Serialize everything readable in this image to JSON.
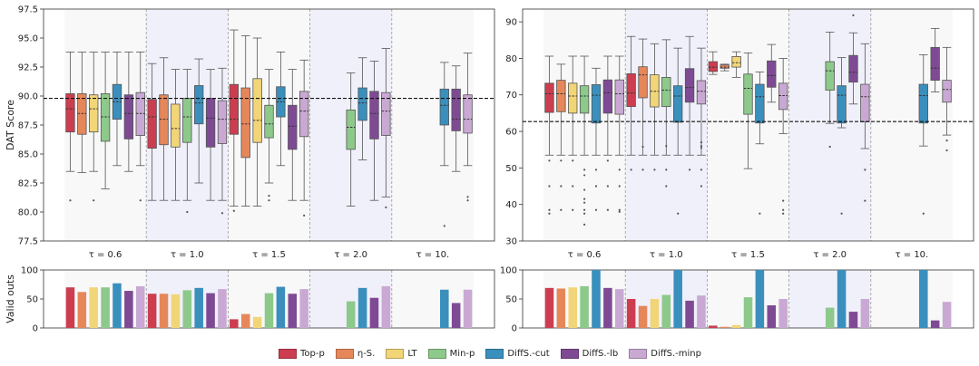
{
  "colors": [
    "#cc3d50",
    "#e6875a",
    "#f1d577",
    "#8dc98a",
    "#3a8fbc",
    "#7f4a94",
    "#c9a9d3"
  ],
  "chart_data": [
    {
      "type": "box",
      "name": "left-dat-score",
      "ylabel": "DAT Score",
      "ylim": [
        77.5,
        97.5
      ],
      "yticks": [
        "77.5",
        "80.0",
        "82.5",
        "85.0",
        "87.5",
        "90.0",
        "92.5",
        "95.0",
        "97.5"
      ],
      "yticks_values": [
        77.5,
        80.0,
        82.5,
        85.0,
        87.5,
        90.0,
        92.5,
        95.0,
        97.5
      ],
      "reference_line": 89.8,
      "groups": [
        "τ = 0.6",
        "τ = 1.0",
        "τ = 1.5",
        "τ = 2.0",
        "τ = 10."
      ],
      "series": [
        "Top-p",
        "η-S.",
        "LT",
        "Min-p",
        "DiffS.-cut",
        "DiffS.-lb",
        "DiffS.-minp"
      ],
      "boxes": [
        [
          [
            83.5,
            86.9,
            88.9,
            90.2,
            93.8
          ],
          [
            83.4,
            86.7,
            88.5,
            90.2,
            93.8
          ],
          [
            83.5,
            86.9,
            88.9,
            90.1,
            93.8
          ],
          [
            82.0,
            86.1,
            88.2,
            90.2,
            93.8
          ],
          [
            84.0,
            88.0,
            89.5,
            91.0,
            93.8
          ],
          [
            83.5,
            86.3,
            88.5,
            90.1,
            93.8
          ],
          [
            84.0,
            86.6,
            88.5,
            90.3,
            93.8
          ]
        ],
        [
          [
            81.0,
            85.5,
            88.2,
            89.7,
            92.8
          ],
          [
            81.0,
            85.8,
            88.0,
            90.1,
            93.3
          ],
          [
            81.0,
            85.6,
            87.2,
            89.3,
            92.3
          ],
          [
            81.0,
            86.0,
            88.2,
            89.8,
            92.3
          ],
          [
            82.5,
            87.6,
            89.4,
            90.9,
            93.2
          ],
          [
            81.0,
            85.6,
            88.1,
            89.8,
            92.3
          ],
          [
            81.0,
            85.9,
            88.0,
            89.6,
            92.4
          ]
        ],
        [
          [
            80.5,
            86.7,
            88.0,
            91.0,
            95.7
          ],
          [
            80.5,
            84.7,
            87.6,
            90.7,
            95.2
          ],
          [
            80.5,
            86.0,
            87.9,
            91.5,
            95.0
          ],
          [
            82.5,
            86.4,
            87.6,
            89.2,
            92.3
          ],
          [
            84.0,
            88.2,
            89.5,
            90.8,
            93.8
          ],
          [
            81.0,
            85.4,
            87.4,
            89.2,
            92.3
          ],
          [
            81.0,
            86.5,
            88.7,
            90.4,
            93.1
          ]
        ],
        [
          null,
          null,
          null,
          [
            80.5,
            85.4,
            87.3,
            88.8,
            92.0
          ],
          [
            84.5,
            87.9,
            89.4,
            90.7,
            93.3
          ],
          [
            81.0,
            86.3,
            88.5,
            90.4,
            93.0
          ],
          [
            81.3,
            86.6,
            88.7,
            90.3,
            94.1
          ]
        ],
        [
          null,
          null,
          null,
          null,
          [
            84.0,
            87.5,
            89.2,
            90.6,
            92.9
          ],
          [
            83.5,
            87.0,
            88.0,
            90.6,
            92.6
          ],
          [
            84.0,
            86.8,
            88.0,
            90.1,
            93.7
          ]
        ]
      ],
      "outliers": [
        [
          [
            81.0
          ],
          [],
          [
            81.0
          ],
          [],
          [],
          [],
          [
            81.0
          ]
        ],
        [
          [],
          [],
          [],
          [
            80.0
          ],
          [],
          [],
          [
            79.9
          ]
        ],
        [
          [
            80.1
          ],
          [],
          [],
          [
            81.4,
            81.0
          ],
          [],
          [],
          [
            79.7
          ]
        ],
        [
          [],
          [],
          [],
          [],
          [],
          [],
          [
            80.4
          ]
        ],
        [
          [],
          [],
          [],
          [],
          [
            78.8
          ],
          [],
          [
            81.3,
            81.0
          ]
        ]
      ]
    },
    {
      "type": "box",
      "name": "right-dat-score",
      "ylabel": "",
      "ylim": [
        30,
        93.5
      ],
      "yticks": [
        "30",
        "40",
        "50",
        "60",
        "70",
        "80",
        "90"
      ],
      "yticks_values": [
        30,
        40,
        50,
        60,
        70,
        80,
        90
      ],
      "reference_line": 62.7,
      "groups": [
        "τ = 0.6",
        "τ = 1.0",
        "τ = 1.5",
        "τ = 2.0",
        "τ = 10."
      ],
      "series": [
        "Top-p",
        "η-S.",
        "LT",
        "Min-p",
        "DiffS.-cut",
        "DiffS.-lb",
        "DiffS.-minp"
      ],
      "boxes": [
        [
          [
            53.5,
            65.2,
            70.3,
            73.2,
            80.6
          ],
          [
            53.5,
            65.4,
            70.3,
            74.0,
            78.4
          ],
          [
            53.5,
            65.0,
            69.7,
            73.2,
            80.6
          ],
          [
            53.5,
            65.0,
            69.7,
            72.5,
            80.6
          ],
          [
            53.5,
            62.3,
            69.9,
            72.8,
            77.3
          ],
          [
            53.5,
            65.0,
            70.6,
            74.1,
            80.6
          ],
          [
            53.5,
            64.7,
            70.3,
            74.1,
            80.6
          ]
        ],
        [
          [
            53.5,
            66.8,
            70.5,
            75.8,
            86.0
          ],
          [
            53.5,
            69.2,
            75.5,
            77.7,
            85.3
          ],
          [
            53.5,
            66.7,
            71.0,
            75.5,
            84.0
          ],
          [
            53.5,
            66.8,
            71.3,
            74.8,
            85.1
          ],
          [
            53.5,
            62.5,
            69.7,
            72.5,
            82.8
          ],
          [
            53.5,
            68.0,
            72.0,
            77.2,
            86.0
          ],
          [
            53.5,
            67.5,
            71.0,
            73.9,
            82.8
          ]
        ],
        [
          [
            75.6,
            76.4,
            77.6,
            79.1,
            81.8
          ],
          [
            76.6,
            77.3,
            77.6,
            78.2,
            78.4
          ],
          [
            74.8,
            77.6,
            78.8,
            80.5,
            81.8
          ],
          [
            49.8,
            64.7,
            71.8,
            75.7,
            81.5
          ],
          [
            56.6,
            62.3,
            69.5,
            72.9,
            76.3
          ],
          [
            68.0,
            72.1,
            75.3,
            79.3,
            83.8
          ],
          [
            59.4,
            66.0,
            69.8,
            73.2,
            80.0
          ]
        ],
        [
          null,
          null,
          null,
          [
            62.2,
            71.3,
            76.6,
            79.1,
            87.2
          ],
          [
            61.0,
            62.3,
            69.9,
            72.5,
            80.2
          ],
          [
            67.5,
            73.5,
            76.2,
            80.8,
            87.0
          ],
          [
            55.3,
            62.6,
            69.5,
            72.9,
            84.0
          ]
        ],
        [
          null,
          null,
          null,
          null,
          [
            56.0,
            62.3,
            69.8,
            72.9,
            81.0
          ],
          [
            70.8,
            74.0,
            77.3,
            83.0,
            88.2
          ],
          [
            59.0,
            68.0,
            71.5,
            74.0,
            83.0
          ]
        ]
      ],
      "outliers": [
        [
          [
            52.0,
            45.0,
            38.5,
            37.5
          ],
          [
            52.0,
            45.0,
            38.5
          ],
          [
            52.0,
            45.0,
            38.5
          ],
          [
            49.5,
            48.0,
            44.0,
            41.5,
            40.5,
            38.5,
            37.5,
            34.5
          ],
          [
            49.5,
            45.0,
            38.5
          ],
          [
            52.0,
            45.0,
            38.5
          ],
          [
            49.5,
            45.0,
            38.5,
            38.0
          ]
        ],
        [
          [
            49.5
          ],
          [
            55.8,
            49.5
          ],
          [
            49.5
          ],
          [
            56.0,
            49.5,
            45.0
          ],
          [
            37.5
          ],
          [
            49.5
          ],
          [
            57.0,
            56.0,
            55.5,
            49.5,
            45.0
          ]
        ],
        [
          [],
          [],
          [],
          [],
          [
            37.5
          ],
          [],
          [
            41.0,
            38.5,
            37.5
          ]
        ],
        [
          [],
          [],
          [],
          [
            55.8
          ],
          [
            37.5
          ],
          [
            91.8
          ],
          [
            49.5,
            41.0
          ]
        ],
        [
          [],
          [],
          [],
          [],
          [
            37.5
          ],
          [],
          [
            57.5,
            54.8
          ]
        ]
      ]
    },
    {
      "type": "bar",
      "name": "left-valid-outs",
      "ylabel": "Valid outs",
      "ylim": [
        0,
        100
      ],
      "yticks": [
        "0",
        "50",
        "100"
      ],
      "yticks_values": [
        0,
        50,
        100
      ],
      "groups": [
        "τ = 0.6",
        "τ = 1.0",
        "τ = 1.5",
        "τ = 2.0",
        "τ = 10."
      ],
      "series": [
        "Top-p",
        "η-S.",
        "LT",
        "Min-p",
        "DiffS.-cut",
        "DiffS.-lb",
        "DiffS.-minp"
      ],
      "values": [
        [
          70,
          62,
          70,
          70,
          77,
          64,
          72
        ],
        [
          59,
          59,
          58,
          65,
          69,
          60,
          67
        ],
        [
          15,
          24,
          19,
          60,
          71,
          59,
          67
        ],
        [
          0,
          0,
          0,
          46,
          69,
          52,
          72
        ],
        [
          0,
          0,
          0,
          0,
          66,
          43,
          66
        ]
      ]
    },
    {
      "type": "bar",
      "name": "right-valid-outs",
      "ylabel": "",
      "ylim": [
        0,
        100
      ],
      "yticks": [
        "0",
        "50",
        "100"
      ],
      "yticks_values": [
        0,
        50,
        100
      ],
      "groups": [
        "τ = 0.6",
        "τ = 1.0",
        "τ = 1.5",
        "τ = 2.0",
        "τ = 10."
      ],
      "series": [
        "Top-p",
        "η-S.",
        "LT",
        "Min-p",
        "DiffS.-cut",
        "DiffS.-lb",
        "DiffS.-minp"
      ],
      "values": [
        [
          69,
          68,
          70,
          72,
          100,
          69,
          67
        ],
        [
          50,
          38,
          50,
          57,
          100,
          47,
          56
        ],
        [
          4,
          2,
          5,
          53,
          100,
          39,
          50
        ],
        [
          0,
          0,
          0,
          35,
          100,
          28,
          50
        ],
        [
          0,
          0,
          0,
          0,
          100,
          13,
          45
        ]
      ]
    }
  ],
  "legend": {
    "items": [
      {
        "label": "Top-p",
        "color": "#cc3d50"
      },
      {
        "label": "η-S.",
        "color": "#e6875a"
      },
      {
        "label": "LT",
        "color": "#f1d577"
      },
      {
        "label": "Min-p",
        "color": "#8dc98a"
      },
      {
        "label": "DiffS.-cut",
        "color": "#3a8fbc"
      },
      {
        "label": "DiffS.-lb",
        "color": "#7f4a94"
      },
      {
        "label": "DiffS.-minp",
        "color": "#c9a9d3"
      }
    ]
  }
}
